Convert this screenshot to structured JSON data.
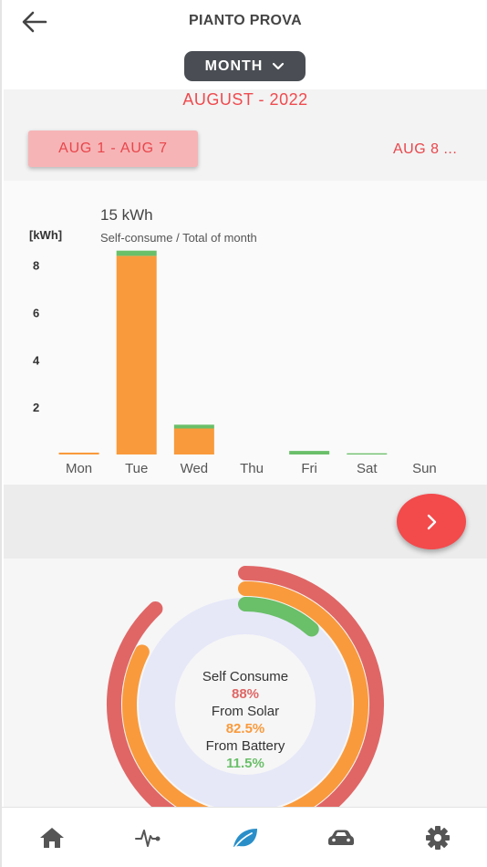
{
  "header": {
    "title": "PIANTO PROVA",
    "back_icon": "arrow-left-icon",
    "period": {
      "selected": "MONTH",
      "icon": "chevron-down-icon"
    }
  },
  "period_nav": {
    "month_label": "AUGUST - 2022",
    "current_week": "AUG 1 - AUG 7",
    "next_week": "AUG 8 ..."
  },
  "chart_data": {
    "type": "bar",
    "title": "15 kWh",
    "subtitle": "Self-consume / Total of month",
    "ylabel": "[kWh]",
    "categories": [
      "Mon",
      "Tue",
      "Wed",
      "Thu",
      "Fri",
      "Sat",
      "Sun"
    ],
    "yticks": [
      2,
      4,
      6,
      8
    ],
    "ylim": [
      0,
      8.8
    ],
    "stacked": true,
    "series": [
      {
        "values": [
          0.08,
          8.4,
          1.1,
          0,
          0,
          0,
          0
        ],
        "color": "#f99a3c"
      },
      {
        "values": [
          0,
          0.22,
          0.16,
          0,
          0.15,
          0.05,
          0
        ],
        "color": "#6abf69"
      }
    ],
    "grid": false
  },
  "next_button": {
    "icon": "chevron-right-icon"
  },
  "summary": {
    "self_consume_label": "Self Consume",
    "self_consume_value": "88%",
    "solar_label": "From Solar",
    "solar_value": "82.5%",
    "battery_label": "From Battery",
    "battery_value": "11.5%",
    "self_consume_fraction": 0.88,
    "solar_fraction": 0.825,
    "battery_fraction": 0.115,
    "colors": {
      "self_consume": "#e06666",
      "solar": "#f99a3c",
      "battery": "#6abf69",
      "track": "#e6e8f8"
    }
  },
  "nav": {
    "items": [
      {
        "icon": "home-icon"
      },
      {
        "icon": "activity-icon"
      },
      {
        "icon": "leaf-icon",
        "active": true
      },
      {
        "icon": "car-icon"
      },
      {
        "icon": "gear-icon"
      }
    ],
    "active_color": "#2a8fc9",
    "inactive_color": "#555555"
  }
}
